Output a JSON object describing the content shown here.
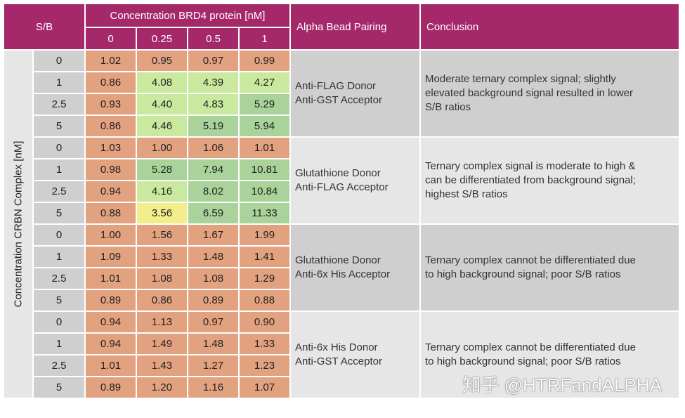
{
  "header": {
    "sb_label": "S/B",
    "brd4_label": "Concentration BRD4 protein [nM]",
    "brd4_concs": [
      "0",
      "0.25",
      "0.5",
      "1"
    ],
    "pairing_label": "Alpha Bead Pairing",
    "conclusion_label": "Conclusion"
  },
  "side_label": "Concentration CRBN Complex [nM]",
  "groups": [
    {
      "pairing": [
        "Anti-FLAG Donor",
        "Anti-GST Acceptor"
      ],
      "conclusion": [
        "Moderate ternary complex signal; slightly",
        "elevated background signal resulted in lower",
        "S/B ratios"
      ],
      "rows": [
        {
          "sb": "0",
          "values": [
            "1.02",
            "0.95",
            "0.97",
            "0.99"
          ]
        },
        {
          "sb": "1",
          "values": [
            "0.86",
            "4.08",
            "4.39",
            "4.27"
          ]
        },
        {
          "sb": "2.5",
          "values": [
            "0.93",
            "4.40",
            "4.83",
            "5.29"
          ]
        },
        {
          "sb": "5",
          "values": [
            "0.86",
            "4.46",
            "5.19",
            "5.94"
          ]
        }
      ]
    },
    {
      "pairing": [
        "Glutathione Donor",
        "Anti-FLAG Acceptor"
      ],
      "conclusion": [
        "Ternary complex signal is moderate to high &",
        "can be differentiated from background signal;",
        "highest S/B ratios"
      ],
      "rows": [
        {
          "sb": "0",
          "values": [
            "1.03",
            "1.00",
            "1.06",
            "1.01"
          ]
        },
        {
          "sb": "1",
          "values": [
            "0.98",
            "5.28",
            "7.94",
            "10.81"
          ]
        },
        {
          "sb": "2.5",
          "values": [
            "0.94",
            "4.16",
            "8.02",
            "10.84"
          ]
        },
        {
          "sb": "5",
          "values": [
            "0.88",
            "3.56",
            "6.59",
            "11.33"
          ]
        }
      ]
    },
    {
      "pairing": [
        "Glutathione Donor",
        "Anti-6x His Acceptor"
      ],
      "conclusion": [
        "Ternary complex cannot be differentiated due",
        "to high background signal; poor S/B ratios"
      ],
      "rows": [
        {
          "sb": "0",
          "values": [
            "1.00",
            "1.56",
            "1.67",
            "1.99"
          ]
        },
        {
          "sb": "1",
          "values": [
            "1.09",
            "1.33",
            "1.48",
            "1.41"
          ]
        },
        {
          "sb": "2.5",
          "values": [
            "1.01",
            "1.08",
            "1.08",
            "1.29"
          ]
        },
        {
          "sb": "5",
          "values": [
            "0.89",
            "0.86",
            "0.89",
            "0.88"
          ]
        }
      ]
    },
    {
      "pairing": [
        "Anti-6x His Donor",
        "Anti-GST Acceptor"
      ],
      "conclusion": [
        "Ternary complex cannot be differentiated due",
        "to high background signal; poor S/B ratios"
      ],
      "rows": [
        {
          "sb": "0",
          "values": [
            "0.94",
            "1.13",
            "0.97",
            "0.90"
          ]
        },
        {
          "sb": "1",
          "values": [
            "0.94",
            "1.49",
            "1.48",
            "1.33"
          ]
        },
        {
          "sb": "2.5",
          "values": [
            "1.01",
            "1.43",
            "1.27",
            "1.23"
          ]
        },
        {
          "sb": "5",
          "values": [
            "0.89",
            "1.20",
            "1.16",
            "1.07"
          ]
        }
      ]
    }
  ],
  "colors": {
    "header": "#a5286a",
    "low": "#e3a27f",
    "mid": "#c9e99e",
    "high": "#a9d39a",
    "yellow": "#f3ee8a"
  },
  "watermark": "知乎 @HTRFandALPHA"
}
